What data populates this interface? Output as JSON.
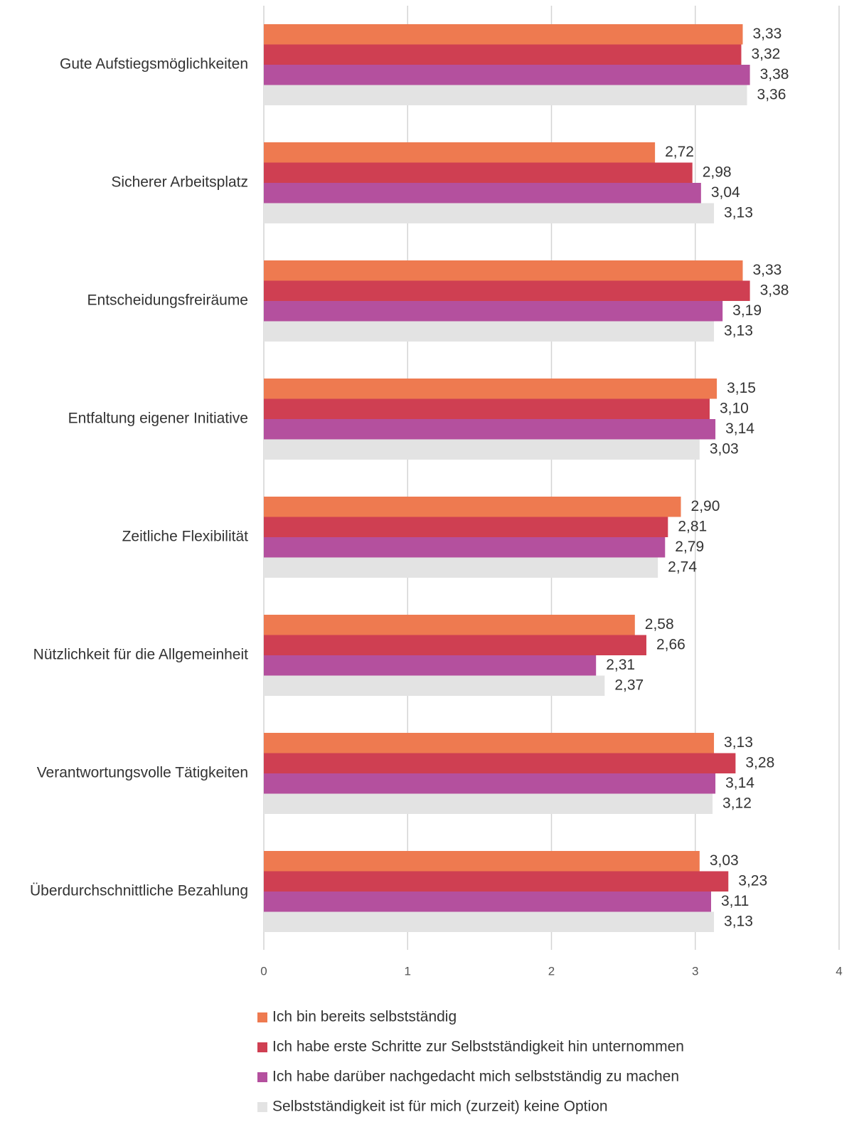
{
  "chart_data": {
    "type": "bar",
    "orientation": "horizontal",
    "categories": [
      "Gute Aufstiegsmöglichkeiten",
      "Sicherer Arbeitsplatz",
      "Entscheidungsfreiräume",
      "Entfaltung eigener Initiative",
      "Zeitliche Flexibilität",
      "Nützlichkeit für die Allgemeinheit",
      "Verantwortungsvolle Tätigkeiten",
      "Überdurchschnittliche Bezahlung"
    ],
    "series": [
      {
        "name": "Ich bin bereits selbstständig",
        "color": "#ee7a50",
        "values": [
          3.33,
          2.72,
          3.33,
          3.15,
          2.9,
          2.58,
          3.13,
          3.03
        ],
        "value_labels": [
          "3,33",
          "2,72",
          "3,33",
          "3,15",
          "2,90",
          "2,58",
          "3,13",
          "3,03"
        ]
      },
      {
        "name": "Ich habe erste Schritte zur Selbstständigkeit hin unternommen",
        "color": "#cf3f52",
        "values": [
          3.32,
          2.98,
          3.38,
          3.1,
          2.81,
          2.66,
          3.28,
          3.23
        ],
        "value_labels": [
          "3,32",
          "2,98",
          "3,38",
          "3,10",
          "2,81",
          "2,66",
          "3,28",
          "3,23"
        ]
      },
      {
        "name": "Ich habe darüber nachgedacht mich selbstständig zu machen",
        "color": "#b4509e",
        "values": [
          3.38,
          3.04,
          3.19,
          3.14,
          2.79,
          2.31,
          3.14,
          3.11
        ],
        "value_labels": [
          "3,38",
          "3,04",
          "3,19",
          "3,14",
          "2,79",
          "2,31",
          "3,14",
          "3,11"
        ]
      },
      {
        "name": "Selbstständigkeit ist für mich (zurzeit) keine Option",
        "color": "#e3e3e3",
        "values": [
          3.36,
          3.13,
          3.13,
          3.03,
          2.74,
          2.37,
          3.12,
          3.13
        ],
        "value_labels": [
          "3,36",
          "3,13",
          "3,13",
          "3,03",
          "2,74",
          "2,37",
          "3,12",
          "3,13"
        ]
      }
    ],
    "xlim": [
      0,
      4
    ],
    "xticks": [
      0,
      1,
      2,
      3,
      4
    ],
    "grid": true,
    "legend": "bottom"
  }
}
